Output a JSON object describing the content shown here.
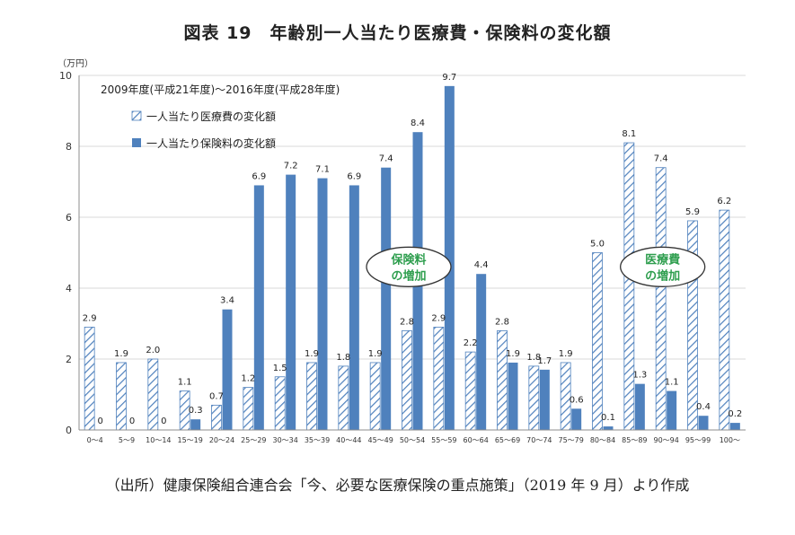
{
  "chart_data": {
    "type": "bar",
    "title": "図表 19　年齢別一人当たり医療費・保険料の変化額",
    "unit_label": "（万円）",
    "period_label": "2009年度(平成21年度)〜2016年度(平成28年度)",
    "ylim": [
      0,
      10
    ],
    "yticks": [
      0,
      2,
      4,
      6,
      8,
      10
    ],
    "grid": true,
    "legend_position": "top-left",
    "categories": [
      "0〜4",
      "5〜9",
      "10〜14",
      "15〜19",
      "20〜24",
      "25〜29",
      "30〜34",
      "35〜39",
      "40〜44",
      "45〜49",
      "50〜54",
      "55〜59",
      "60〜64",
      "65〜69",
      "70〜74",
      "75〜79",
      "80〜84",
      "85〜89",
      "90〜94",
      "95〜99",
      "100〜"
    ],
    "series": [
      {
        "name": "一人当たり医療費の変化額",
        "style": "hatched",
        "color": "#4f81bd",
        "values": [
          2.9,
          1.9,
          2.0,
          1.1,
          0.7,
          1.2,
          1.5,
          1.9,
          1.8,
          1.9,
          2.8,
          2.9,
          2.2,
          2.8,
          1.8,
          1.9,
          5.0,
          8.1,
          7.4,
          5.9,
          6.2
        ],
        "labels": [
          "2.9",
          "1.9",
          "2.0",
          "1.1",
          "0.7",
          "1.2",
          "1.5",
          "1.9",
          "1.8",
          "1.9",
          "2.8",
          "2.9",
          "2.2",
          "2.8",
          "1.8",
          "1.9",
          "5.0",
          "8.1",
          "7.4",
          "5.9",
          "6.2"
        ]
      },
      {
        "name": "一人当たり保険料の変化額",
        "style": "solid",
        "color": "#4f81bd",
        "values": [
          0,
          0,
          0,
          0.3,
          3.4,
          6.9,
          7.2,
          7.1,
          6.9,
          7.4,
          8.4,
          9.7,
          4.4,
          1.9,
          1.7,
          0.6,
          0.1,
          1.3,
          1.1,
          0.4,
          0.2
        ],
        "labels": [
          "0",
          "0",
          "0",
          "0.3",
          "3.4",
          "6.9",
          "7.2",
          "7.1",
          "6.9",
          "7.4",
          "8.4",
          "9.7",
          "4.4",
          "1.9",
          "1.7",
          "0.6",
          "0.1",
          "1.3",
          "1.1",
          "0.4",
          "0.2"
        ]
      }
    ],
    "annotations": [
      {
        "line1": "保険料",
        "line2": "の増加",
        "category_index": 10,
        "y": 4.6,
        "color": "#2e9e4e"
      },
      {
        "line1": "医療費",
        "line2": "の増加",
        "category_index": 18,
        "y": 4.6,
        "color": "#2e9e4e"
      }
    ]
  },
  "source_note": "（出所）健康保険組合連合会「今、必要な医療保険の重点施策」（2019 年 9 月）より作成"
}
